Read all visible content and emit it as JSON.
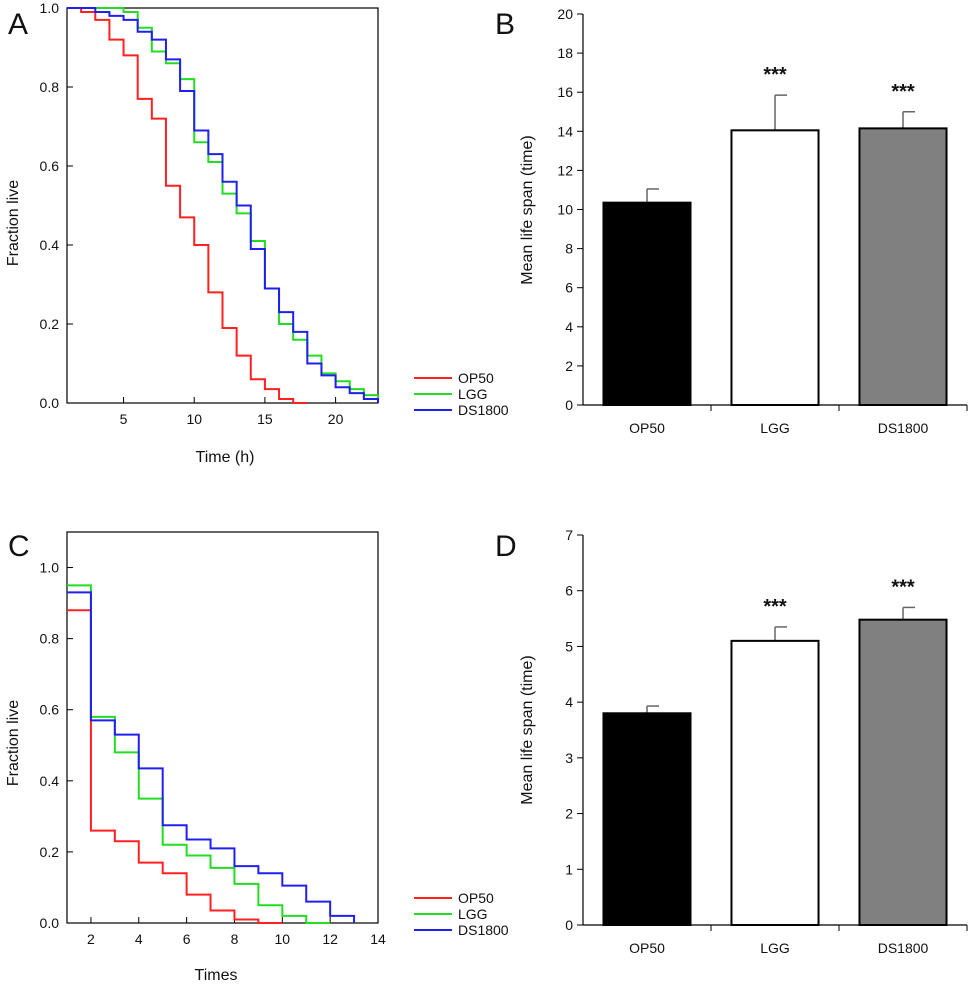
{
  "colors": {
    "OP50": "#ff2020",
    "LGG": "#22dd22",
    "DS1800": "#2020ee",
    "bar_OP50": "#000000",
    "bar_LGG": "#ffffff",
    "bar_DS1800": "#808080"
  },
  "chart_data": [
    {
      "panel": "A",
      "type": "line",
      "step": true,
      "xlabel": "Time (h)",
      "ylabel": "Fraction live",
      "xlim": [
        1,
        23
      ],
      "ylim": [
        0,
        1.0
      ],
      "xticks": [
        5,
        10,
        15,
        20
      ],
      "xtick_labels": [
        "5",
        "10",
        "15",
        "20"
      ],
      "yticks": [
        0,
        0.2,
        0.4,
        0.6,
        0.8,
        1.0
      ],
      "ytick_labels": [
        "0.0",
        "0.2",
        "0.4",
        "0.6",
        "0.8",
        "1.0"
      ],
      "legend": [
        "OP50",
        "LGG",
        "DS1800"
      ],
      "series": [
        {
          "name": "OP50",
          "x": [
            1,
            2,
            3,
            4,
            5,
            6,
            7,
            8,
            9,
            10,
            11,
            12,
            13,
            14,
            15,
            16,
            17,
            18
          ],
          "y": [
            1.0,
            0.99,
            0.97,
            0.92,
            0.88,
            0.77,
            0.72,
            0.55,
            0.47,
            0.4,
            0.28,
            0.19,
            0.12,
            0.06,
            0.035,
            0.01,
            0.0,
            0.0
          ]
        },
        {
          "name": "LGG",
          "x": [
            1,
            2,
            3,
            4,
            5,
            6,
            7,
            8,
            9,
            10,
            11,
            12,
            13,
            14,
            15,
            16,
            17,
            18,
            19,
            20,
            21,
            22,
            23
          ],
          "y": [
            1.0,
            1.0,
            1.0,
            1.0,
            0.99,
            0.95,
            0.89,
            0.86,
            0.82,
            0.66,
            0.61,
            0.53,
            0.48,
            0.41,
            0.29,
            0.2,
            0.16,
            0.12,
            0.075,
            0.055,
            0.035,
            0.02,
            0.0
          ]
        },
        {
          "name": "DS1800",
          "x": [
            1,
            2,
            3,
            4,
            5,
            6,
            7,
            8,
            9,
            10,
            11,
            12,
            13,
            14,
            15,
            16,
            17,
            18,
            19,
            20,
            21,
            22,
            23
          ],
          "y": [
            1.0,
            1.0,
            0.99,
            0.98,
            0.97,
            0.94,
            0.92,
            0.87,
            0.79,
            0.69,
            0.63,
            0.56,
            0.5,
            0.39,
            0.29,
            0.23,
            0.18,
            0.1,
            0.07,
            0.04,
            0.025,
            0.01,
            0.0
          ]
        }
      ]
    },
    {
      "panel": "B",
      "type": "bar",
      "categories": [
        "OP50",
        "LGG",
        "DS1800"
      ],
      "values": [
        10.35,
        14.05,
        14.15
      ],
      "errors": [
        0.7,
        1.8,
        0.85
      ],
      "significance": [
        "",
        "***",
        "***"
      ],
      "ylabel": "Mean life span (time)",
      "xlabel": "",
      "ylim": [
        0,
        20
      ],
      "yticks": [
        0,
        2,
        4,
        6,
        8,
        10,
        12,
        14,
        16,
        18,
        20
      ]
    },
    {
      "panel": "C",
      "type": "line",
      "step": true,
      "xlabel": "Times",
      "ylabel": "Fraction live",
      "xlim": [
        1,
        14
      ],
      "ylim": [
        0,
        1.1
      ],
      "xticks": [
        2,
        4,
        6,
        8,
        10,
        12,
        14
      ],
      "xtick_labels": [
        "2",
        "4",
        "6",
        "8",
        "10",
        "12",
        "14"
      ],
      "yticks": [
        0,
        0.2,
        0.4,
        0.6,
        0.8,
        1.0
      ],
      "ytick_labels": [
        "0.0",
        "0.2",
        "0.4",
        "0.6",
        "0.8",
        "1.0"
      ],
      "legend": [
        "OP50",
        "LGG",
        "DS1800"
      ],
      "series": [
        {
          "name": "OP50",
          "x": [
            1,
            2,
            3,
            4,
            5,
            6,
            7,
            8,
            9,
            10
          ],
          "y": [
            0.88,
            0.26,
            0.23,
            0.17,
            0.14,
            0.08,
            0.035,
            0.01,
            0.0,
            0.0
          ]
        },
        {
          "name": "LGG",
          "x": [
            1,
            2,
            3,
            4,
            5,
            6,
            7,
            8,
            9,
            10,
            11,
            12
          ],
          "y": [
            0.95,
            0.58,
            0.48,
            0.35,
            0.22,
            0.19,
            0.155,
            0.11,
            0.05,
            0.02,
            0.0,
            0.0
          ]
        },
        {
          "name": "DS1800",
          "x": [
            1,
            2,
            3,
            4,
            5,
            6,
            7,
            8,
            9,
            10,
            11,
            12,
            13
          ],
          "y": [
            0.93,
            0.57,
            0.53,
            0.435,
            0.275,
            0.235,
            0.21,
            0.16,
            0.14,
            0.105,
            0.06,
            0.02,
            0.0
          ]
        }
      ]
    },
    {
      "panel": "D",
      "type": "bar",
      "categories": [
        "OP50",
        "LGG",
        "DS1800"
      ],
      "values": [
        3.8,
        5.1,
        5.48
      ],
      "errors": [
        0.13,
        0.25,
        0.22
      ],
      "significance": [
        "",
        "***",
        "***"
      ],
      "ylabel": "Mean life span (time)",
      "xlabel": "",
      "ylim": [
        0,
        7
      ],
      "yticks": [
        0,
        1,
        2,
        3,
        4,
        5,
        6,
        7
      ]
    }
  ]
}
